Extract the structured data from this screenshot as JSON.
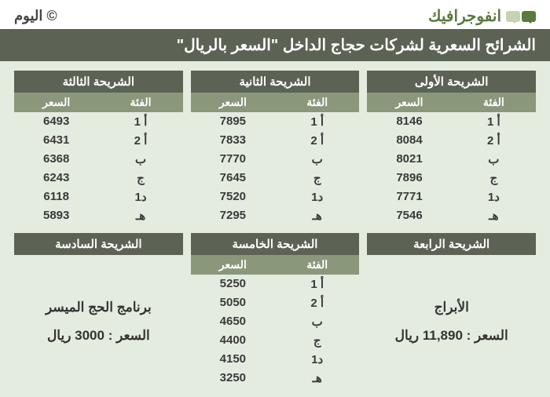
{
  "header": {
    "brand_word": "انفوجرافيك",
    "site": "اليوم",
    "copy": "©"
  },
  "title": "الشرائح السعرية لشركات حجاج الداخل \"السعر بالريال\"",
  "col_cat": "الفئة",
  "col_price": "السعر",
  "categories": [
    "أ 1",
    "أ 2",
    "ب",
    "ج",
    "د1",
    "هـ"
  ],
  "tiers": [
    {
      "title": "الشريحة الأولى",
      "prices": [
        "8146",
        "8084",
        "8021",
        "7896",
        "7771",
        "7546"
      ]
    },
    {
      "title": "الشريحة الثانية",
      "prices": [
        "7895",
        "7833",
        "7770",
        "7645",
        "7520",
        "7295"
      ]
    },
    {
      "title": "الشريحة الثالثة",
      "prices": [
        "6493",
        "6431",
        "6368",
        "6243",
        "6118",
        "5893"
      ]
    }
  ],
  "tier4": {
    "title": "الشريحة الرابعة",
    "line1": "الأبراج",
    "line2": "السعر : 11,890 ريال"
  },
  "tier5": {
    "title": "الشريحة الخامسة",
    "prices": [
      "5250",
      "5050",
      "4650",
      "4400",
      "4150",
      "3250"
    ]
  },
  "tier6": {
    "title": "الشريحة السادسة",
    "line1": "برنامج الحج الميسر",
    "line2": "السعر : 3000 ريال"
  },
  "colors": {
    "page_bg": "#e4ece0",
    "header_bar": "#5c6254",
    "sub_header": "#8a977a",
    "accent": "#5a7a3f"
  }
}
